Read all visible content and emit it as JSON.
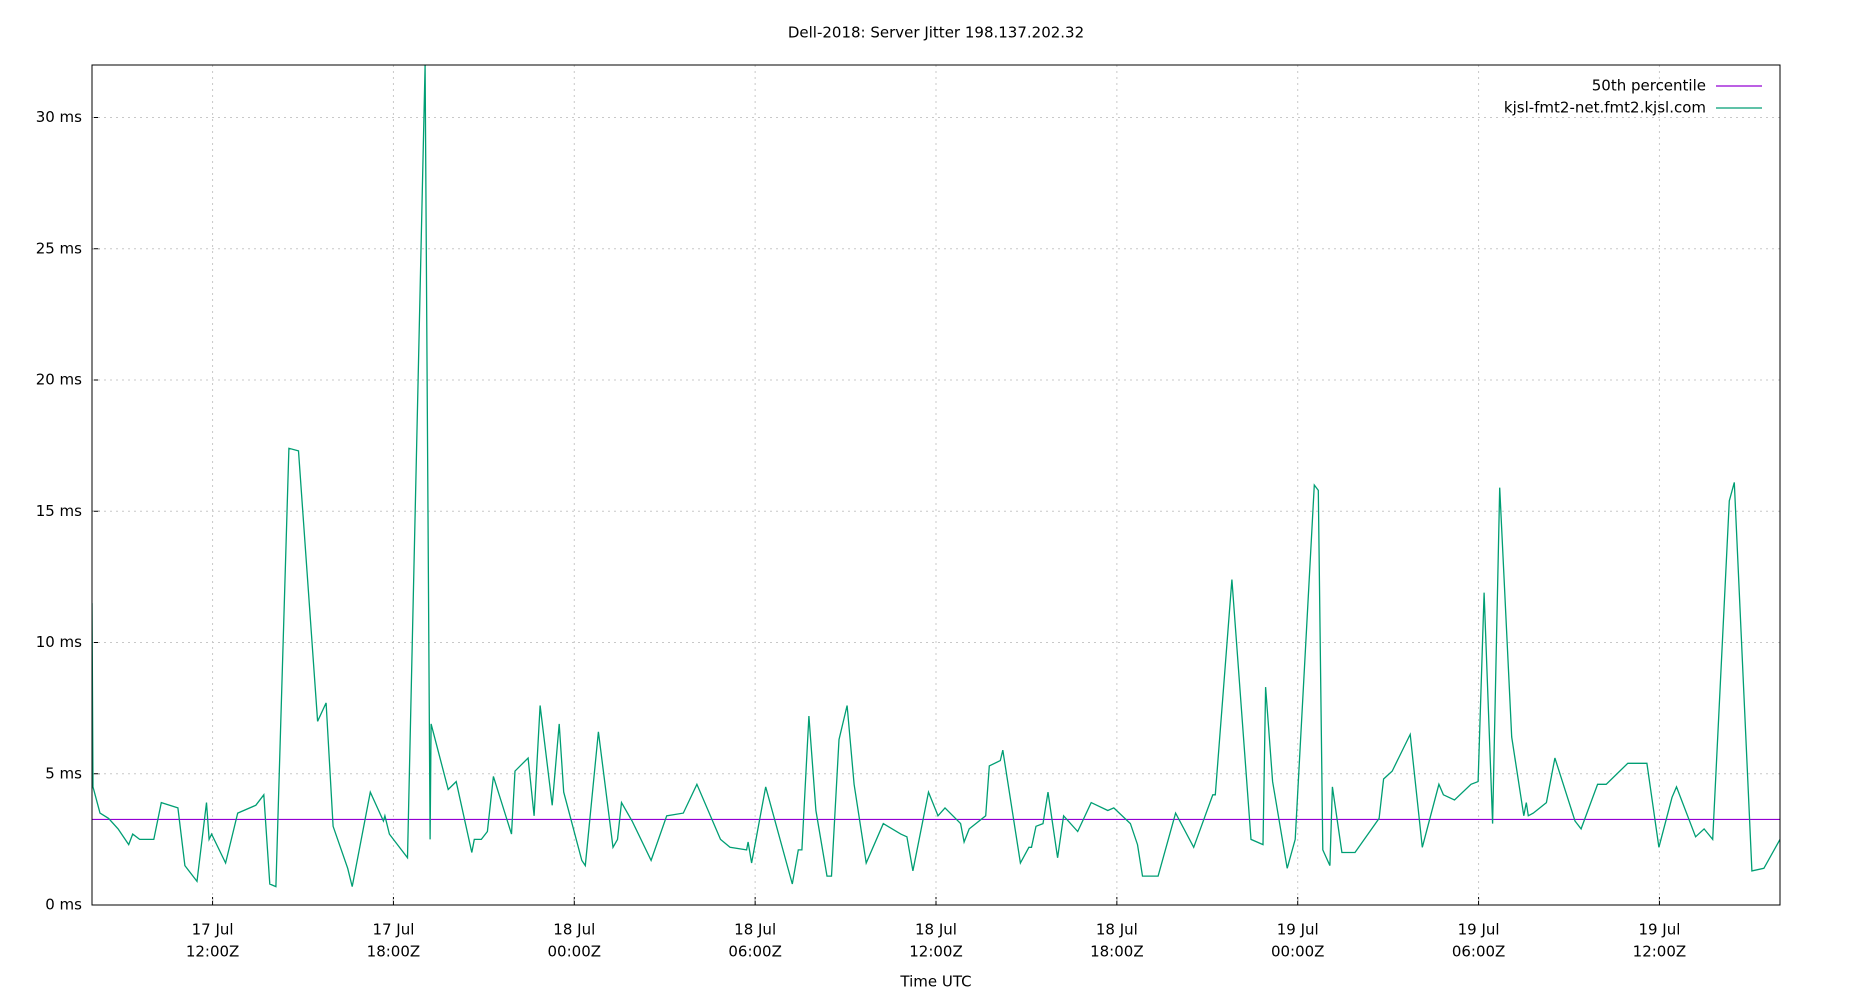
{
  "chart_data": {
    "type": "line",
    "title": "Dell-2018: Server Jitter 198.137.202.32",
    "x_label": "Time UTC",
    "xlim": [
      "17 Jul 08:00",
      "19 Jul 16:00"
    ],
    "xticks": [
      {
        "value": "17 Jul 12:00",
        "label": [
          "17 Jul",
          "12:00Z"
        ]
      },
      {
        "value": "17 Jul 18:00",
        "label": [
          "17 Jul",
          "18:00Z"
        ]
      },
      {
        "value": "18 Jul 00:00",
        "label": [
          "18 Jul",
          "00:00Z"
        ]
      },
      {
        "value": "18 Jul 06:00",
        "label": [
          "18 Jul",
          "06:00Z"
        ]
      },
      {
        "value": "18 Jul 12:00",
        "label": [
          "18 Jul",
          "12:00Z"
        ]
      },
      {
        "value": "18 Jul 18:00",
        "label": [
          "18 Jul",
          "18:00Z"
        ]
      },
      {
        "value": "19 Jul 00:00",
        "label": [
          "19 Jul",
          "00:00Z"
        ]
      },
      {
        "value": "19 Jul 06:00",
        "label": [
          "19 Jul",
          "06:00Z"
        ]
      },
      {
        "value": "19 Jul 12:00",
        "label": [
          "19 Jul",
          "12:00Z"
        ]
      }
    ],
    "ylim": [
      0,
      32
    ],
    "yticks": [
      {
        "value": 0,
        "label": "0 ms"
      },
      {
        "value": 5,
        "label": "5 ms"
      },
      {
        "value": 10,
        "label": "10 ms"
      },
      {
        "value": 15,
        "label": "15 ms"
      },
      {
        "value": 20,
        "label": "20 ms"
      },
      {
        "value": 25,
        "label": "25 ms"
      },
      {
        "value": 30,
        "label": "30 ms"
      }
    ],
    "grid": true,
    "legend": "top-right",
    "reference_lines": [
      {
        "name": "50th percentile",
        "color": "#9400d3",
        "value": 3.26
      }
    ],
    "x": [
      "17 Jul 08:00",
      "17 Jul 08:02",
      "17 Jul 08:16",
      "17 Jul 08:33",
      "17 Jul 08:52",
      "17 Jul 09:13",
      "17 Jul 09:21",
      "17 Jul 09:35",
      "17 Jul 10:03",
      "17 Jul 10:18",
      "17 Jul 10:51",
      "17 Jul 11:05",
      "17 Jul 11:29",
      "17 Jul 11:48",
      "17 Jul 11:53",
      "17 Jul 11:58",
      "17 Jul 12:26",
      "17 Jul 12:50",
      "17 Jul 13:26",
      "17 Jul 13:42",
      "17 Jul 13:54",
      "17 Jul 14:06",
      "17 Jul 14:32",
      "17 Jul 14:51",
      "17 Jul 15:29",
      "17 Jul 15:46",
      "17 Jul 16:00",
      "17 Jul 16:29",
      "17 Jul 16:38",
      "17 Jul 17:14",
      "17 Jul 17:40",
      "17 Jul 17:43",
      "17 Jul 17:52",
      "17 Jul 18:28",
      "17 Jul 19:03",
      "17 Jul 19:13",
      "17 Jul 19:15",
      "17 Jul 19:49",
      "17 Jul 20:05",
      "17 Jul 20:36",
      "17 Jul 20:41",
      "17 Jul 20:55",
      "17 Jul 21:07",
      "17 Jul 21:19",
      "17 Jul 21:55",
      "17 Jul 22:02",
      "17 Jul 22:28",
      "17 Jul 22:40",
      "17 Jul 22:52",
      "17 Jul 23:16",
      "17 Jul 23:30",
      "17 Jul 23:39",
      "18 Jul 00:15",
      "18 Jul 00:22",
      "18 Jul 00:48",
      "18 Jul 01:17",
      "18 Jul 01:26",
      "18 Jul 01:34",
      "18 Jul 01:55",
      "18 Jul 02:33",
      "18 Jul 03:04",
      "18 Jul 03:37",
      "18 Jul 04:04",
      "18 Jul 04:51",
      "18 Jul 05:10",
      "18 Jul 05:43",
      "18 Jul 05:46",
      "18 Jul 05:53",
      "18 Jul 06:21",
      "18 Jul 07:14",
      "18 Jul 07:26",
      "18 Jul 07:33",
      "18 Jul 07:47",
      "18 Jul 08:01",
      "18 Jul 08:23",
      "18 Jul 08:32",
      "18 Jul 08:47",
      "18 Jul 09:03",
      "18 Jul 09:17",
      "18 Jul 09:41",
      "18 Jul 10:15",
      "18 Jul 10:50",
      "18 Jul 11:02",
      "18 Jul 11:14",
      "18 Jul 11:45",
      "18 Jul 12:04",
      "18 Jul 12:18",
      "18 Jul 12:49",
      "18 Jul 12:56",
      "18 Jul 13:06",
      "18 Jul 13:39",
      "18 Jul 13:46",
      "18 Jul 14:08",
      "18 Jul 14:13",
      "18 Jul 14:48",
      "18 Jul 15:05",
      "18 Jul 15:10",
      "18 Jul 15:19",
      "18 Jul 15:33",
      "18 Jul 15:43",
      "18 Jul 16:02",
      "18 Jul 16:14",
      "18 Jul 16:42",
      "18 Jul 17:09",
      "18 Jul 17:42",
      "18 Jul 17:54",
      "18 Jul 18:27",
      "18 Jul 18:41",
      "18 Jul 18:51",
      "18 Jul 19:22",
      "18 Jul 19:57",
      "18 Jul 20:33",
      "18 Jul 21:11",
      "18 Jul 21:16",
      "18 Jul 21:49",
      "18 Jul 22:27",
      "18 Jul 22:51",
      "18 Jul 22:56",
      "18 Jul 23:10",
      "18 Jul 23:39",
      "18 Jul 23:55",
      "19 Jul 00:33",
      "19 Jul 00:41",
      "19 Jul 00:50",
      "19 Jul 01:04",
      "19 Jul 01:09",
      "19 Jul 01:28",
      "19 Jul 01:54",
      "19 Jul 02:42",
      "19 Jul 02:51",
      "19 Jul 03:08",
      "19 Jul 03:44",
      "19 Jul 04:08",
      "19 Jul 04:41",
      "19 Jul 04:50",
      "19 Jul 05:12",
      "19 Jul 05:45",
      "19 Jul 05:59",
      "19 Jul 06:11",
      "19 Jul 06:28",
      "19 Jul 06:42",
      "19 Jul 07:06",
      "19 Jul 07:30",
      "19 Jul 07:35",
      "19 Jul 07:39",
      "19 Jul 07:49",
      "19 Jul 08:15",
      "19 Jul 08:32",
      "19 Jul 09:12",
      "19 Jul 09:24",
      "19 Jul 09:57",
      "19 Jul 10:14",
      "19 Jul 10:57",
      "19 Jul 11:35",
      "19 Jul 11:59",
      "19 Jul 12:25",
      "19 Jul 12:34",
      "19 Jul 13:12",
      "19 Jul 13:29",
      "19 Jul 13:46",
      "19 Jul 14:19",
      "19 Jul 14:29",
      "19 Jul 15:04",
      "19 Jul 15:28",
      "19 Jul 16:00"
    ],
    "series": [
      {
        "name": "kjsl-fmt2-net.fmt2.kjsl.com",
        "color": "#009e73",
        "values": [
          11.5,
          4.5,
          3.5,
          3.3,
          2.9,
          2.3,
          2.7,
          2.5,
          2.5,
          3.9,
          3.7,
          1.5,
          0.9,
          3.9,
          2.5,
          2.7,
          1.6,
          3.5,
          3.8,
          4.2,
          0.8,
          0.7,
          17.4,
          17.3,
          7.0,
          7.7,
          3.0,
          1.4,
          0.7,
          4.3,
          3.2,
          3.4,
          2.7,
          1.8,
          32,
          2.5,
          6.9,
          4.4,
          4.7,
          2.0,
          2.5,
          2.5,
          2.8,
          4.9,
          2.7,
          5.1,
          5.6,
          3.4,
          7.6,
          3.8,
          6.9,
          4.3,
          1.7,
          1.5,
          6.6,
          2.2,
          2.5,
          3.9,
          3.2,
          1.7,
          3.4,
          3.5,
          4.6,
          2.5,
          2.2,
          2.1,
          2.4,
          1.6,
          4.5,
          0.8,
          2.1,
          2.1,
          7.2,
          3.6,
          1.1,
          1.1,
          6.3,
          7.6,
          4.6,
          1.6,
          3.1,
          2.7,
          2.6,
          1.3,
          4.3,
          3.4,
          3.7,
          3.1,
          2.4,
          2.9,
          3.4,
          5.3,
          5.5,
          5.9,
          1.6,
          2.2,
          2.2,
          3.0,
          3.1,
          4.3,
          1.8,
          3.4,
          2.8,
          3.9,
          3.6,
          3.7,
          3.1,
          2.3,
          1.1,
          1.1,
          3.5,
          2.2,
          4.2,
          4.2,
          12.4,
          2.5,
          2.3,
          8.3,
          4.7,
          1.4,
          2.5,
          16.0,
          15.8,
          2.1,
          1.5,
          4.5,
          2.0,
          2.0,
          3.3,
          4.8,
          5.1,
          6.5,
          2.2,
          4.6,
          4.2,
          4.0,
          4.6,
          4.7,
          11.9,
          3.1,
          15.9,
          6.4,
          3.4,
          3.9,
          3.4,
          3.5,
          3.9,
          5.6,
          3.2,
          2.9,
          4.6,
          4.6,
          5.4,
          5.4,
          2.2,
          4.1,
          4.5,
          2.6,
          2.9,
          2.5,
          15.4,
          16.1,
          1.3,
          1.4,
          2.5
        ]
      }
    ]
  }
}
